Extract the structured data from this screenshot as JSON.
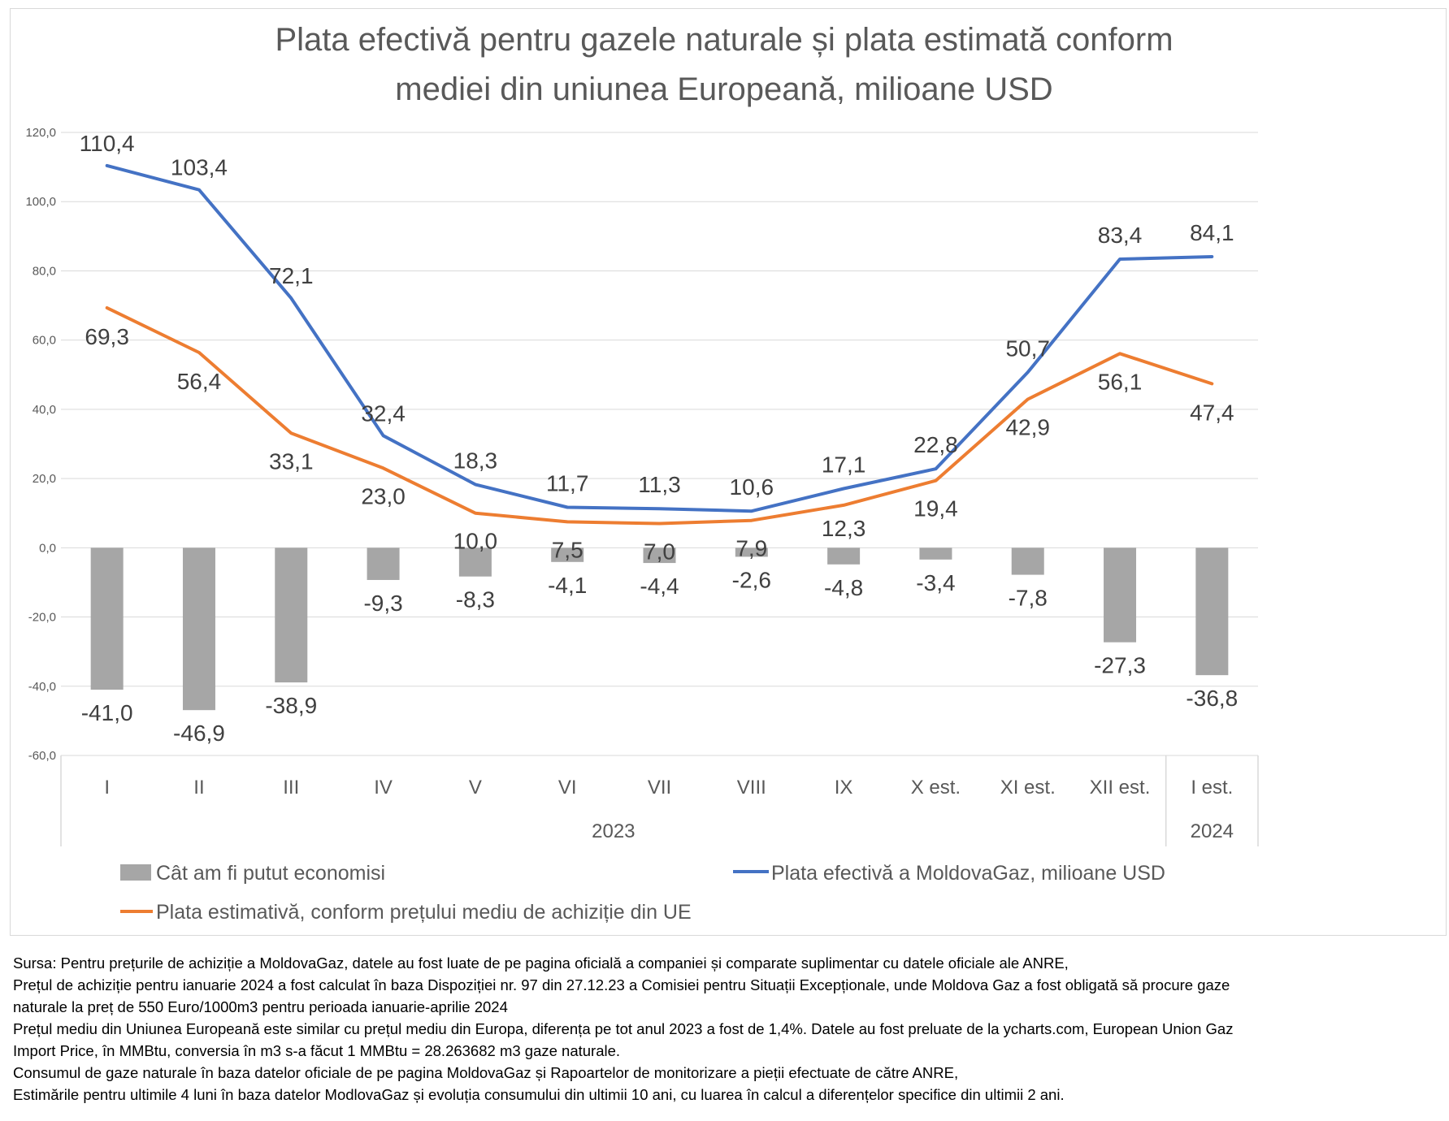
{
  "colors": {
    "bars": "#a6a6a6",
    "actual_line": "#4472c4",
    "estimated_line": "#ed7d31",
    "grid": "#d9d9d9",
    "text": "#595959"
  },
  "chart_data": {
    "type": "bar+line",
    "title_lines": [
      "Plata efectivă pentru gazele naturale și plata estimată conform",
      "mediei din uniunea Europeană, milioane USD"
    ],
    "ylim": [
      -60,
      120
    ],
    "y_ticks": [
      120,
      100,
      80,
      60,
      40,
      20,
      0,
      -20,
      -40,
      -60
    ],
    "y_tick_labels": [
      "120,0",
      "100,0",
      "80,0",
      "60,0",
      "40,0",
      "20,0",
      "0,0",
      "-20,0",
      "-40,0",
      "-60,0"
    ],
    "categories": [
      "I",
      "II",
      "III",
      "IV",
      "V",
      "VI",
      "VII",
      "VIII",
      "IX",
      "X est.",
      "XI est.",
      "XII est.",
      "I est."
    ],
    "year_groups": [
      {
        "label": "2023",
        "count": 12
      },
      {
        "label": "2024",
        "count": 1
      }
    ],
    "series": [
      {
        "name": "Cât am fi putut economisi",
        "kind": "bar",
        "values": [
          -41.0,
          -46.9,
          -38.9,
          -9.3,
          -8.3,
          -4.1,
          -4.4,
          -2.6,
          -4.8,
          -3.4,
          -7.8,
          -27.3,
          -36.8
        ],
        "labels": [
          "-41,0",
          "-46,9",
          "-38,9",
          "-9,3",
          "-8,3",
          "-4,1",
          "-4,4",
          "-2,6",
          "-4,8",
          "-3,4",
          "-7,8",
          "-27,3",
          "-36,8"
        ]
      },
      {
        "name": "Plata efectivă a MoldovaGaz, milioane USD",
        "kind": "line",
        "values": [
          110.4,
          103.4,
          72.1,
          32.4,
          18.3,
          11.7,
          11.3,
          10.6,
          17.1,
          22.8,
          50.7,
          83.4,
          84.1
        ],
        "labels": [
          "110,4",
          "103,4",
          "72,1",
          "32,4",
          "18,3",
          "11,7",
          "11,3",
          "10,6",
          "17,1",
          "22,8",
          "50,7",
          "83,4",
          "84,1"
        ]
      },
      {
        "name": "Plata estimativă, conform prețului mediu de achiziție din UE",
        "kind": "line",
        "values": [
          69.3,
          56.4,
          33.1,
          23.0,
          10.0,
          7.5,
          7.0,
          7.9,
          12.3,
          19.4,
          42.9,
          56.1,
          47.4
        ],
        "labels": [
          "69,3",
          "56,4",
          "33,1",
          "23,0",
          "10,0",
          "7,5",
          "7,0",
          "7,9",
          "12,3",
          "19,4",
          "42,9",
          "56,1",
          "47,4"
        ]
      }
    ],
    "legend": [
      "Cât am fi putut economisi",
      "Plata efectivă a MoldovaGaz, milioane USD",
      "Plata estimativă, conform prețului mediu de achiziție din UE"
    ],
    "legend_position": "bottom"
  },
  "notes": [
    "Sursa: Pentru prețurile de achiziție a MoldovaGaz, datele au fost luate de pe pagina oficială a companiei și comparate suplimentar cu datele oficiale ale ANRE,",
    "Prețul de achiziție pentru ianuarie 2024 a fost calculat în baza Dispoziției nr. 97 din 27.12.23 a Comisiei pentru Situații Excepționale, unde Moldova Gaz a fost obligată să procure gaze",
    "naturale la preț de 550 Euro/1000m3 pentru perioada ianuarie-aprilie 2024",
    "Prețul mediu din Uniunea Europeană este similar cu prețul mediu din Europa, diferența pe tot anul 2023 a fost de 1,4%. Datele au fost preluate de la ycharts.com, European Union Gaz",
    "Import Price, în MMBtu, conversia în m3 s-a făcut 1 MMBtu = 28.263682 m3 gaze naturale.",
    "Consumul de gaze naturale în baza datelor oficiale de pe pagina MoldovaGaz și Rapoartelor de monitorizare a pieții efectuate de către ANRE,",
    "Estimările pentru ultimile 4 luni în baza datelor ModlovaGaz și evoluția consumului din ultimii 10 ani, cu luarea în calcul a diferențelor specifice din ultimii 2 ani."
  ]
}
